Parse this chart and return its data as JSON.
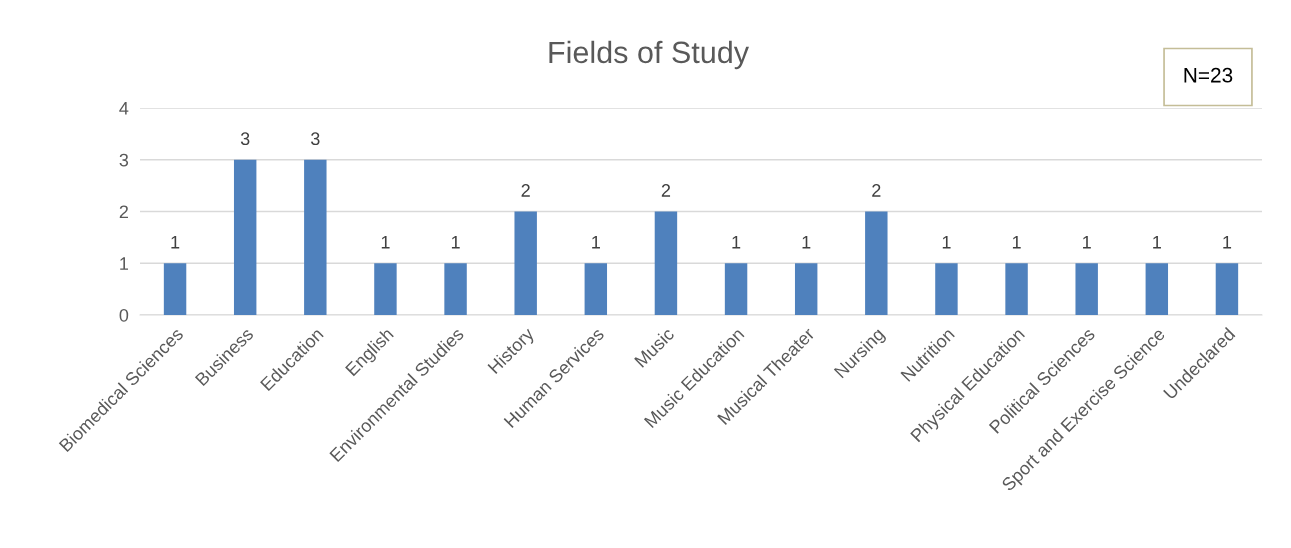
{
  "chart_data": {
    "type": "bar",
    "title": "Fields of Study",
    "categories": [
      "Biomedical Sciences",
      "Business",
      "Education",
      "English",
      "Environmental Studies",
      "History",
      "Human Services",
      "Music",
      "Music Education",
      "Musical Theater",
      "Nursing",
      "Nutrition",
      "Physical Education",
      "Political Sciences",
      "Sport and Exercise Science",
      "Undeclared"
    ],
    "values": [
      1,
      3,
      3,
      1,
      1,
      2,
      1,
      2,
      1,
      1,
      2,
      1,
      1,
      1,
      1,
      1
    ],
    "color": "#4f81bd",
    "ylim": [
      0,
      4
    ],
    "yticks": [
      0,
      1,
      2,
      3,
      4
    ],
    "grid": "y",
    "data_labels": true,
    "legend": false,
    "annotations": [
      "N=23"
    ]
  }
}
